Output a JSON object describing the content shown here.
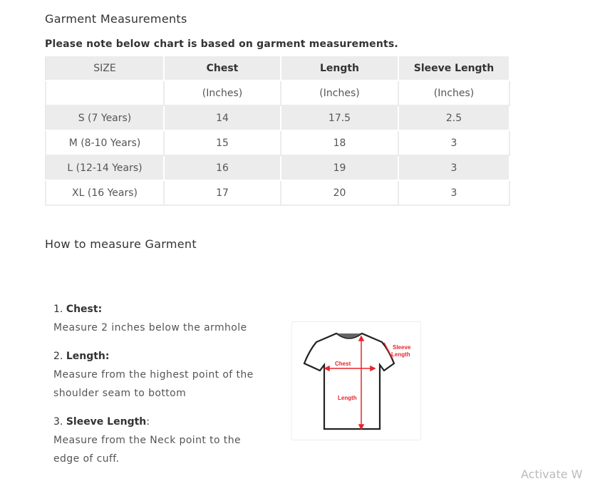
{
  "title": "Garment Measurements",
  "note": "Please note below chart is based on garment measurements.",
  "table": {
    "headers": [
      "SIZE",
      "Chest",
      "Length",
      "Sleeve Length"
    ],
    "units": [
      "",
      "(Inches)",
      "(Inches)",
      "(Inches)"
    ],
    "rows": [
      [
        "S (7 Years)",
        "14",
        "17.5",
        "2.5"
      ],
      [
        "M (8-10 Years)",
        "15",
        "18",
        "3"
      ],
      [
        "L (12-14 Years)",
        "16",
        "19",
        "3"
      ],
      [
        "XL (16 Years)",
        "17",
        "20",
        "3"
      ]
    ]
  },
  "how_to": {
    "heading": "How to measure Garment",
    "steps": [
      {
        "num": "1.",
        "label": "Chest:",
        "suffix": "",
        "desc": [
          "Measure 2 inches below the armhole"
        ]
      },
      {
        "num": "2.",
        "label": "Length:",
        "suffix": "",
        "desc": [
          "Measure from the highest point of the",
          "shoulder seam to bottom"
        ]
      },
      {
        "num": "3.",
        "label": "Sleeve Length",
        "suffix": ":",
        "desc": [
          "Measure from the Neck point to the",
          "edge of cuff."
        ]
      }
    ],
    "diagram_labels": {
      "chest": "Chest",
      "length": "Length",
      "sleeve1": "Sleeve",
      "sleeve2": "Length"
    }
  },
  "watermark": "Activate W",
  "colors": {
    "header_bg": "#ececec",
    "diagram_red": "#e8252a"
  }
}
